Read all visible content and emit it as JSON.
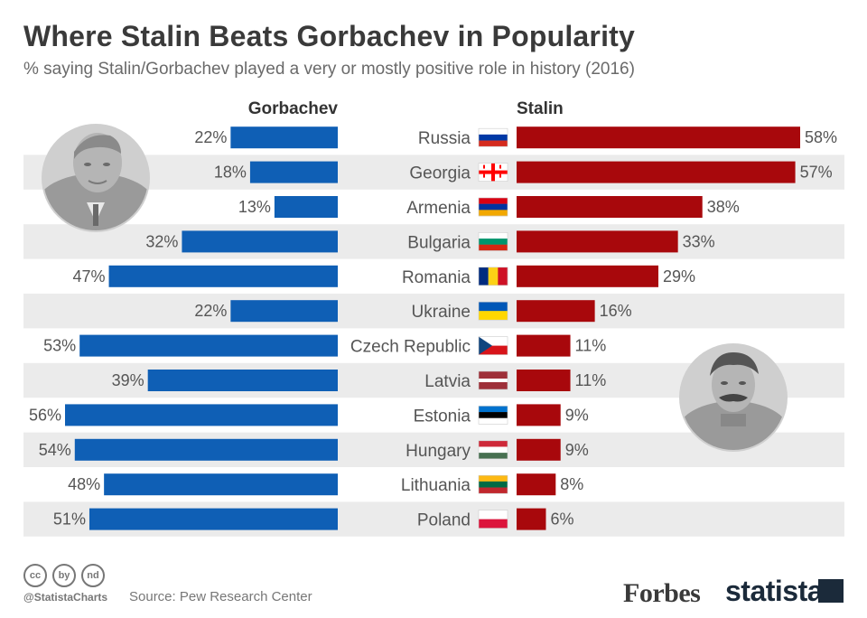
{
  "title": "Where Stalin Beats Gorbachev in Popularity",
  "subtitle": "% saying Stalin/Gorbachev played a very or mostly positive role in history (2016)",
  "chart_data": {
    "type": "bar",
    "orientation": "horizontal-diverging",
    "categories": [
      "Russia",
      "Georgia",
      "Armenia",
      "Bulgaria",
      "Romania",
      "Ukraine",
      "Czech Republic",
      "Latvia",
      "Estonia",
      "Hungary",
      "Lithuania",
      "Poland"
    ],
    "series": [
      {
        "name": "Gorbachev",
        "color": "#0f5fb5",
        "values": [
          22,
          18,
          13,
          32,
          47,
          22,
          53,
          39,
          56,
          54,
          48,
          51
        ]
      },
      {
        "name": "Stalin",
        "color": "#a8080c",
        "values": [
          58,
          57,
          38,
          33,
          29,
          16,
          11,
          11,
          9,
          9,
          8,
          6
        ]
      }
    ],
    "value_suffix": "%",
    "xlim": [
      0,
      60
    ]
  },
  "footer": {
    "handle": "@StatistaCharts",
    "source": "Source: Pew Research Center",
    "brand_forbes": "Forbes",
    "brand_statista": "statista",
    "license_icons": [
      "cc",
      "by",
      "nd"
    ]
  },
  "colors": {
    "row_stripe": "#ebebeb",
    "gorbachev": "#0f5fb5",
    "stalin": "#a8080c"
  },
  "icons": [
    "gorbachev-portrait-icon",
    "stalin-portrait-icon"
  ]
}
